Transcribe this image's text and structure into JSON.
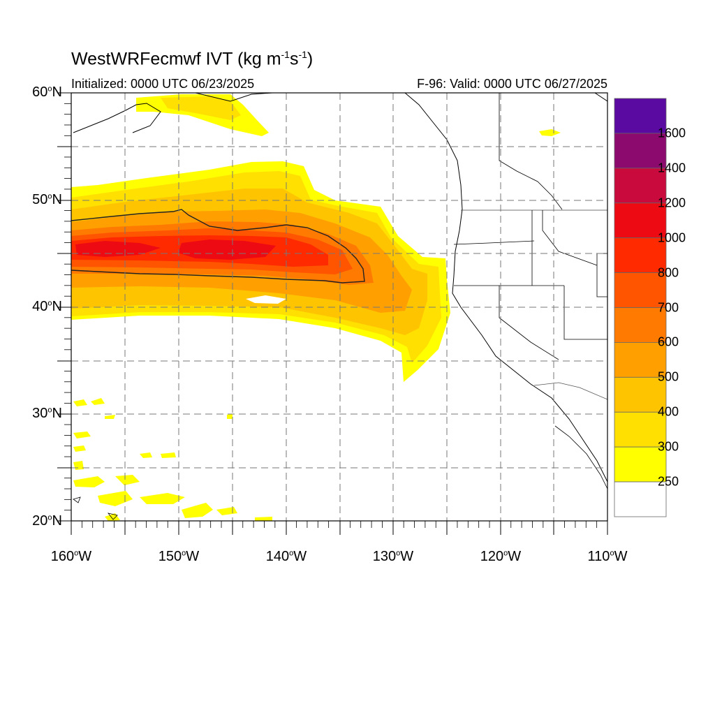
{
  "title": {
    "model": "WestWRFecmwf",
    "variable": "IVT",
    "units_prefix": "(kg m",
    "exp1": "-1",
    "units_mid": "s",
    "exp2": "-1",
    "units_suffix": ")"
  },
  "subtitle_left": "Initialized: 0000 UTC 06/23/2025",
  "subtitle_right": "F-96: Valid: 0000 UTC 06/27/2025",
  "lat_axis": [
    {
      "num": "60",
      "hem": "N"
    },
    {
      "num": "50",
      "hem": "N"
    },
    {
      "num": "40",
      "hem": "N"
    },
    {
      "num": "30",
      "hem": "N"
    },
    {
      "num": "20",
      "hem": "N"
    }
  ],
  "lon_axis": [
    {
      "num": "160",
      "hem": "W"
    },
    {
      "num": "150",
      "hem": "W"
    },
    {
      "num": "140",
      "hem": "W"
    },
    {
      "num": "130",
      "hem": "W"
    },
    {
      "num": "120",
      "hem": "W"
    },
    {
      "num": "110",
      "hem": "W"
    }
  ],
  "colorbar": {
    "labels": [
      "1600",
      "1400",
      "1200",
      "1000",
      "800",
      "700",
      "600",
      "500",
      "400",
      "300",
      "250"
    ],
    "colors": [
      "#5a0aa0",
      "#8c0a6e",
      "#c80a3c",
      "#ee0a12",
      "#ff2a00",
      "#ff5500",
      "#ff7a00",
      "#ffa000",
      "#ffc400",
      "#ffe000",
      "#ffff00",
      "#ffffff"
    ]
  }
}
